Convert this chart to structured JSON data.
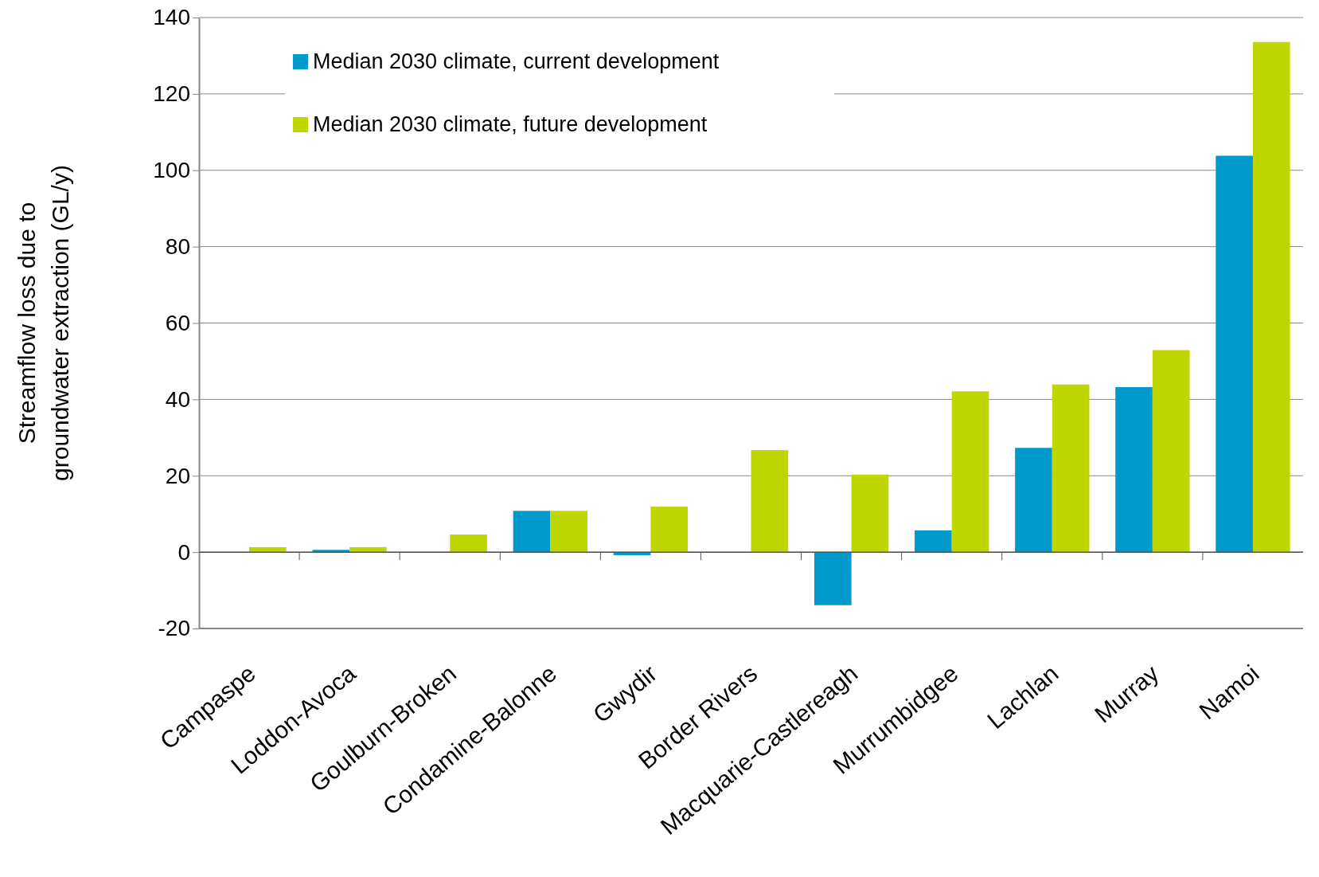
{
  "chart_data": {
    "type": "bar",
    "ylabel": "Streamflow loss due to groundwater extraction (GL/y)",
    "categories": [
      "Campaspe",
      "Loddon-Avoca",
      "Goulburn-Broken",
      "Condamine-Balonne",
      "Gwydir",
      "Border Rivers",
      "Macquarie-Castlereagh",
      "Murrumbidgee",
      "Lachlan",
      "Murray",
      "Namoi"
    ],
    "series": [
      {
        "name": "Median 2030 climate, current development",
        "color": "#0099cc",
        "values": [
          0,
          0.6,
          0,
          10.8,
          -0.8,
          0,
          -13.9,
          5.7,
          27.3,
          43.2,
          103.8
        ]
      },
      {
        "name": "Median 2030 climate, future development",
        "color": "#bfd600",
        "values": [
          1.3,
          1.3,
          4.6,
          10.8,
          11.9,
          26.7,
          20.3,
          42.1,
          43.9,
          52.9,
          133.6
        ]
      }
    ],
    "ylim": [
      -20,
      140
    ],
    "yticks": [
      -20,
      0,
      20,
      40,
      60,
      80,
      100,
      120,
      140
    ],
    "grid": "y",
    "legend": "top left"
  }
}
